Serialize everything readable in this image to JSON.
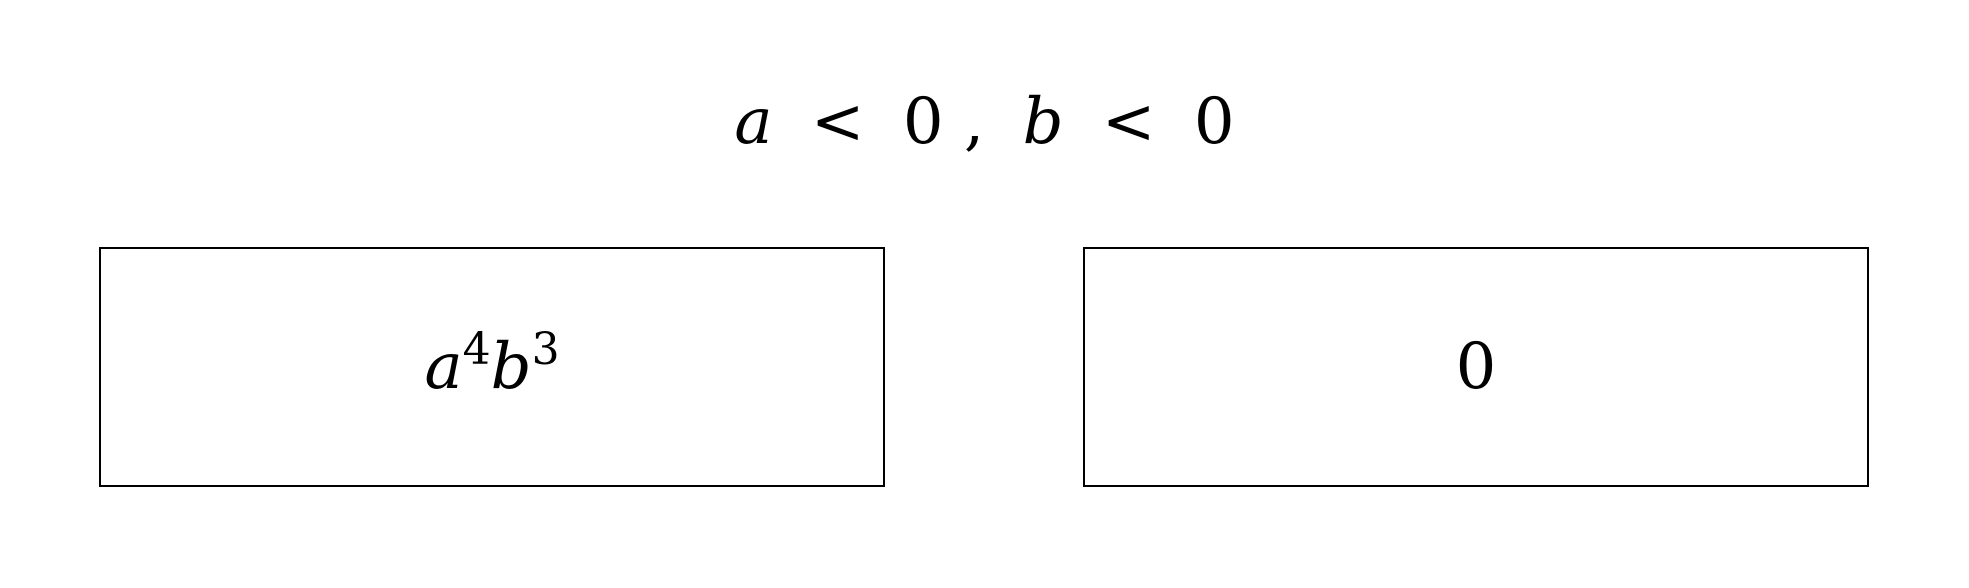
{
  "condition": {
    "a_var": "a",
    "less_than_1": "<",
    "zero_1": "0",
    "comma": ",",
    "b_var": "b",
    "less_than_2": "<",
    "zero_2": "0"
  },
  "boxes": {
    "left": {
      "base_1": "a",
      "exponent_1": "4",
      "base_2": "b",
      "exponent_2": "3"
    },
    "right": {
      "value": "0"
    }
  }
}
